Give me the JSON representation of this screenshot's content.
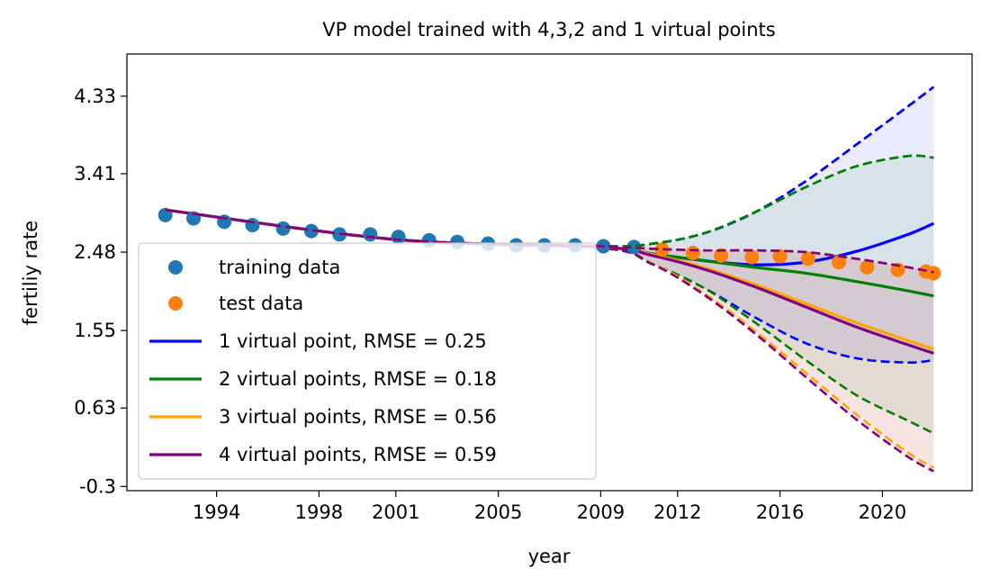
{
  "chart_data": {
    "type": "line",
    "title": "VP model trained with 4,3,2 and 1 virtual points",
    "xlabel": "year",
    "ylabel": "fertiliy rate",
    "xlim": [
      1990.5,
      2023.5
    ],
    "ylim": [
      -0.35,
      4.83
    ],
    "x_ticks": [
      1994,
      1998,
      2001,
      2005,
      2009,
      2012,
      2016,
      2020
    ],
    "y_ticks": [
      -0.3,
      0.63,
      1.55,
      2.48,
      3.41,
      4.33
    ],
    "y_tick_labels": [
      "-0.3",
      "0.63",
      "1.55",
      "2.48",
      "3.41",
      "4.33"
    ],
    "legend_position": "lower-left",
    "grid": false,
    "training_data": {
      "name": "training data",
      "color": "#1f77b4",
      "x": [
        1992.0,
        1993.1,
        1994.3,
        1995.4,
        1996.6,
        1997.7,
        1998.8,
        2000.0,
        2001.1,
        2002.3,
        2003.4,
        2004.6,
        2005.7,
        2006.8,
        2008.0,
        2009.1,
        2010.3
      ],
      "y": [
        2.92,
        2.88,
        2.84,
        2.8,
        2.76,
        2.73,
        2.69,
        2.69,
        2.66,
        2.62,
        2.6,
        2.58,
        2.56,
        2.56,
        2.56,
        2.55,
        2.54
      ]
    },
    "test_data": {
      "name": "test data",
      "color": "#ff7f0e",
      "x": [
        2011.4,
        2012.6,
        2013.7,
        2014.9,
        2016.0,
        2017.1,
        2018.3,
        2019.4,
        2020.6,
        2021.7,
        2022.0
      ],
      "y": [
        2.51,
        2.47,
        2.44,
        2.42,
        2.43,
        2.4,
        2.36,
        2.3,
        2.27,
        2.25,
        2.23
      ]
    },
    "series": [
      {
        "name": "1 virtual point, RMSE = 0.25",
        "color": "#0000ff",
        "x": [
          1992,
          2001,
          2009,
          2011,
          2013,
          2015,
          2017,
          2019,
          2021,
          2022
        ],
        "mean": [
          2.98,
          2.63,
          2.54,
          2.46,
          2.38,
          2.33,
          2.36,
          2.49,
          2.69,
          2.82
        ],
        "upper": [
          2.98,
          2.63,
          2.55,
          2.58,
          2.7,
          2.95,
          3.32,
          3.76,
          4.21,
          4.44
        ],
        "lower": [
          2.98,
          2.63,
          2.53,
          2.34,
          2.06,
          1.71,
          1.4,
          1.22,
          1.17,
          1.2
        ]
      },
      {
        "name": "2 virtual points, RMSE = 0.18",
        "color": "#008000",
        "x": [
          1992,
          2001,
          2009,
          2011,
          2013,
          2015,
          2017,
          2019,
          2021,
          2022
        ],
        "mean": [
          2.98,
          2.63,
          2.54,
          2.46,
          2.38,
          2.3,
          2.23,
          2.13,
          2.02,
          1.96
        ],
        "upper": [
          2.98,
          2.63,
          2.55,
          2.58,
          2.7,
          2.95,
          3.25,
          3.5,
          3.62,
          3.6
        ],
        "lower": [
          2.98,
          2.63,
          2.53,
          2.34,
          2.06,
          1.65,
          1.2,
          0.78,
          0.48,
          0.33
        ]
      },
      {
        "name": "3 virtual points, RMSE = 0.56",
        "color": "#ffa500",
        "x": [
          1992,
          2001,
          2009,
          2011,
          2013,
          2015,
          2017,
          2019,
          2021,
          2022
        ],
        "mean": [
          2.98,
          2.63,
          2.54,
          2.45,
          2.3,
          2.1,
          1.87,
          1.64,
          1.43,
          1.33
        ],
        "upper": [
          2.98,
          2.63,
          2.55,
          2.52,
          2.5,
          2.5,
          2.48,
          2.4,
          2.3,
          2.24
        ],
        "lower": [
          2.98,
          2.63,
          2.53,
          2.35,
          2.0,
          1.55,
          1.05,
          0.55,
          0.1,
          -0.08
        ]
      },
      {
        "name": "4 virtual points, RMSE = 0.59",
        "color": "#800080",
        "x": [
          1992,
          2001,
          2009,
          2011,
          2013,
          2015,
          2017,
          2019,
          2021,
          2022
        ],
        "mean": [
          2.98,
          2.63,
          2.54,
          2.44,
          2.28,
          2.07,
          1.83,
          1.59,
          1.38,
          1.28
        ],
        "upper": [
          2.98,
          2.63,
          2.55,
          2.52,
          2.5,
          2.5,
          2.48,
          2.4,
          2.3,
          2.24
        ],
        "lower": [
          2.98,
          2.63,
          2.53,
          2.34,
          1.98,
          1.52,
          1.0,
          0.49,
          0.05,
          -0.12
        ]
      }
    ]
  }
}
